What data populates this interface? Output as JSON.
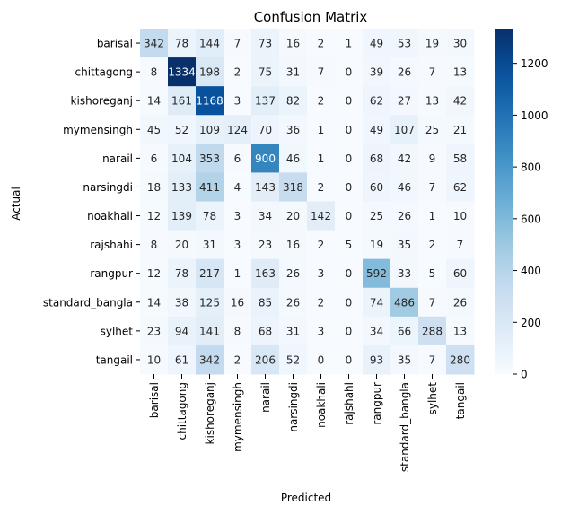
{
  "chart_data": {
    "type": "heatmap",
    "title": "Confusion Matrix",
    "xlabel": "Predicted",
    "ylabel": "Actual",
    "x_categories": [
      "barisal",
      "chittagong",
      "kishoreganj",
      "mymensingh",
      "narail",
      "narsingdi",
      "noakhali",
      "rajshahi",
      "rangpur",
      "standard_bangla",
      "sylhet",
      "tangail"
    ],
    "y_categories": [
      "barisal",
      "chittagong",
      "kishoreganj",
      "mymensingh",
      "narail",
      "narsingdi",
      "noakhali",
      "rajshahi",
      "rangpur",
      "standard_bangla",
      "sylhet",
      "tangail"
    ],
    "values": [
      [
        342,
        78,
        144,
        7,
        73,
        16,
        2,
        1,
        49,
        53,
        19,
        30
      ],
      [
        8,
        1334,
        198,
        2,
        75,
        31,
        7,
        0,
        39,
        26,
        7,
        13
      ],
      [
        14,
        161,
        1168,
        3,
        137,
        82,
        2,
        0,
        62,
        27,
        13,
        42
      ],
      [
        45,
        52,
        109,
        124,
        70,
        36,
        1,
        0,
        49,
        107,
        25,
        21
      ],
      [
        6,
        104,
        353,
        6,
        900,
        46,
        1,
        0,
        68,
        42,
        9,
        58
      ],
      [
        18,
        133,
        411,
        4,
        143,
        318,
        2,
        0,
        60,
        46,
        7,
        62
      ],
      [
        12,
        139,
        78,
        3,
        34,
        20,
        142,
        0,
        25,
        26,
        1,
        10
      ],
      [
        8,
        20,
        31,
        3,
        23,
        16,
        2,
        5,
        19,
        35,
        2,
        7
      ],
      [
        12,
        78,
        217,
        1,
        163,
        26,
        3,
        0,
        592,
        33,
        5,
        60
      ],
      [
        14,
        38,
        125,
        16,
        85,
        26,
        2,
        0,
        74,
        486,
        7,
        26
      ],
      [
        23,
        94,
        141,
        8,
        68,
        31,
        3,
        0,
        34,
        66,
        288,
        13
      ],
      [
        10,
        61,
        342,
        2,
        206,
        52,
        0,
        0,
        93,
        35,
        7,
        280
      ]
    ],
    "colormap": "Blues",
    "color_range": [
      0,
      1334
    ],
    "colorbar_ticks": [
      0,
      200,
      400,
      600,
      800,
      1000,
      1200
    ],
    "annotations": true
  }
}
